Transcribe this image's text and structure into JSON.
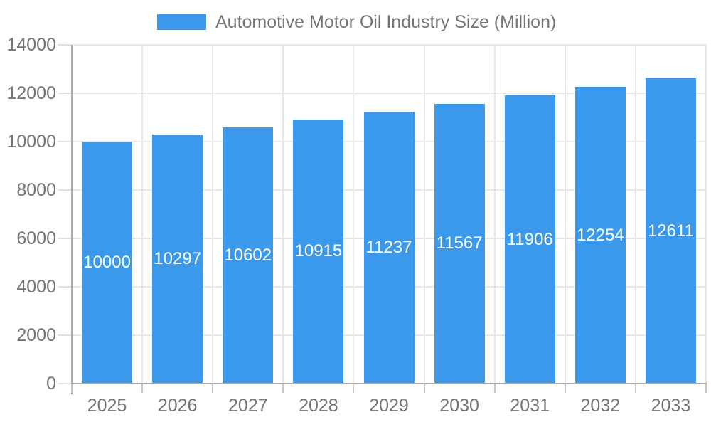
{
  "chart_data": {
    "type": "bar",
    "title": "Automotive Motor Oil Industry Size (Million)",
    "categories": [
      "2025",
      "2026",
      "2027",
      "2028",
      "2029",
      "2030",
      "2031",
      "2032",
      "2033"
    ],
    "series": [
      {
        "name": "Automotive Motor Oil Industry Size (Million)",
        "values": [
          10000,
          10297,
          10602,
          10915,
          11237,
          11567,
          11906,
          12254,
          12611
        ]
      }
    ],
    "xlabel": "",
    "ylabel": "",
    "ylim": [
      0,
      14000
    ],
    "yticks": [
      0,
      2000,
      4000,
      6000,
      8000,
      10000,
      12000,
      14000
    ],
    "grid": true,
    "legend_position": "top",
    "value_labels_position": "inside-middle",
    "colors": {
      "bar": "#3B99EC",
      "axis_line": "#ABABAB",
      "gridline": "#E8E8E8",
      "x_tick": "#C6C6C6",
      "y_tick": "#E0E0E0",
      "axis_text": "#757575",
      "legend_text": "#757575",
      "value_label_text": "#FFFFFF",
      "background": "#FFFFFF"
    }
  }
}
